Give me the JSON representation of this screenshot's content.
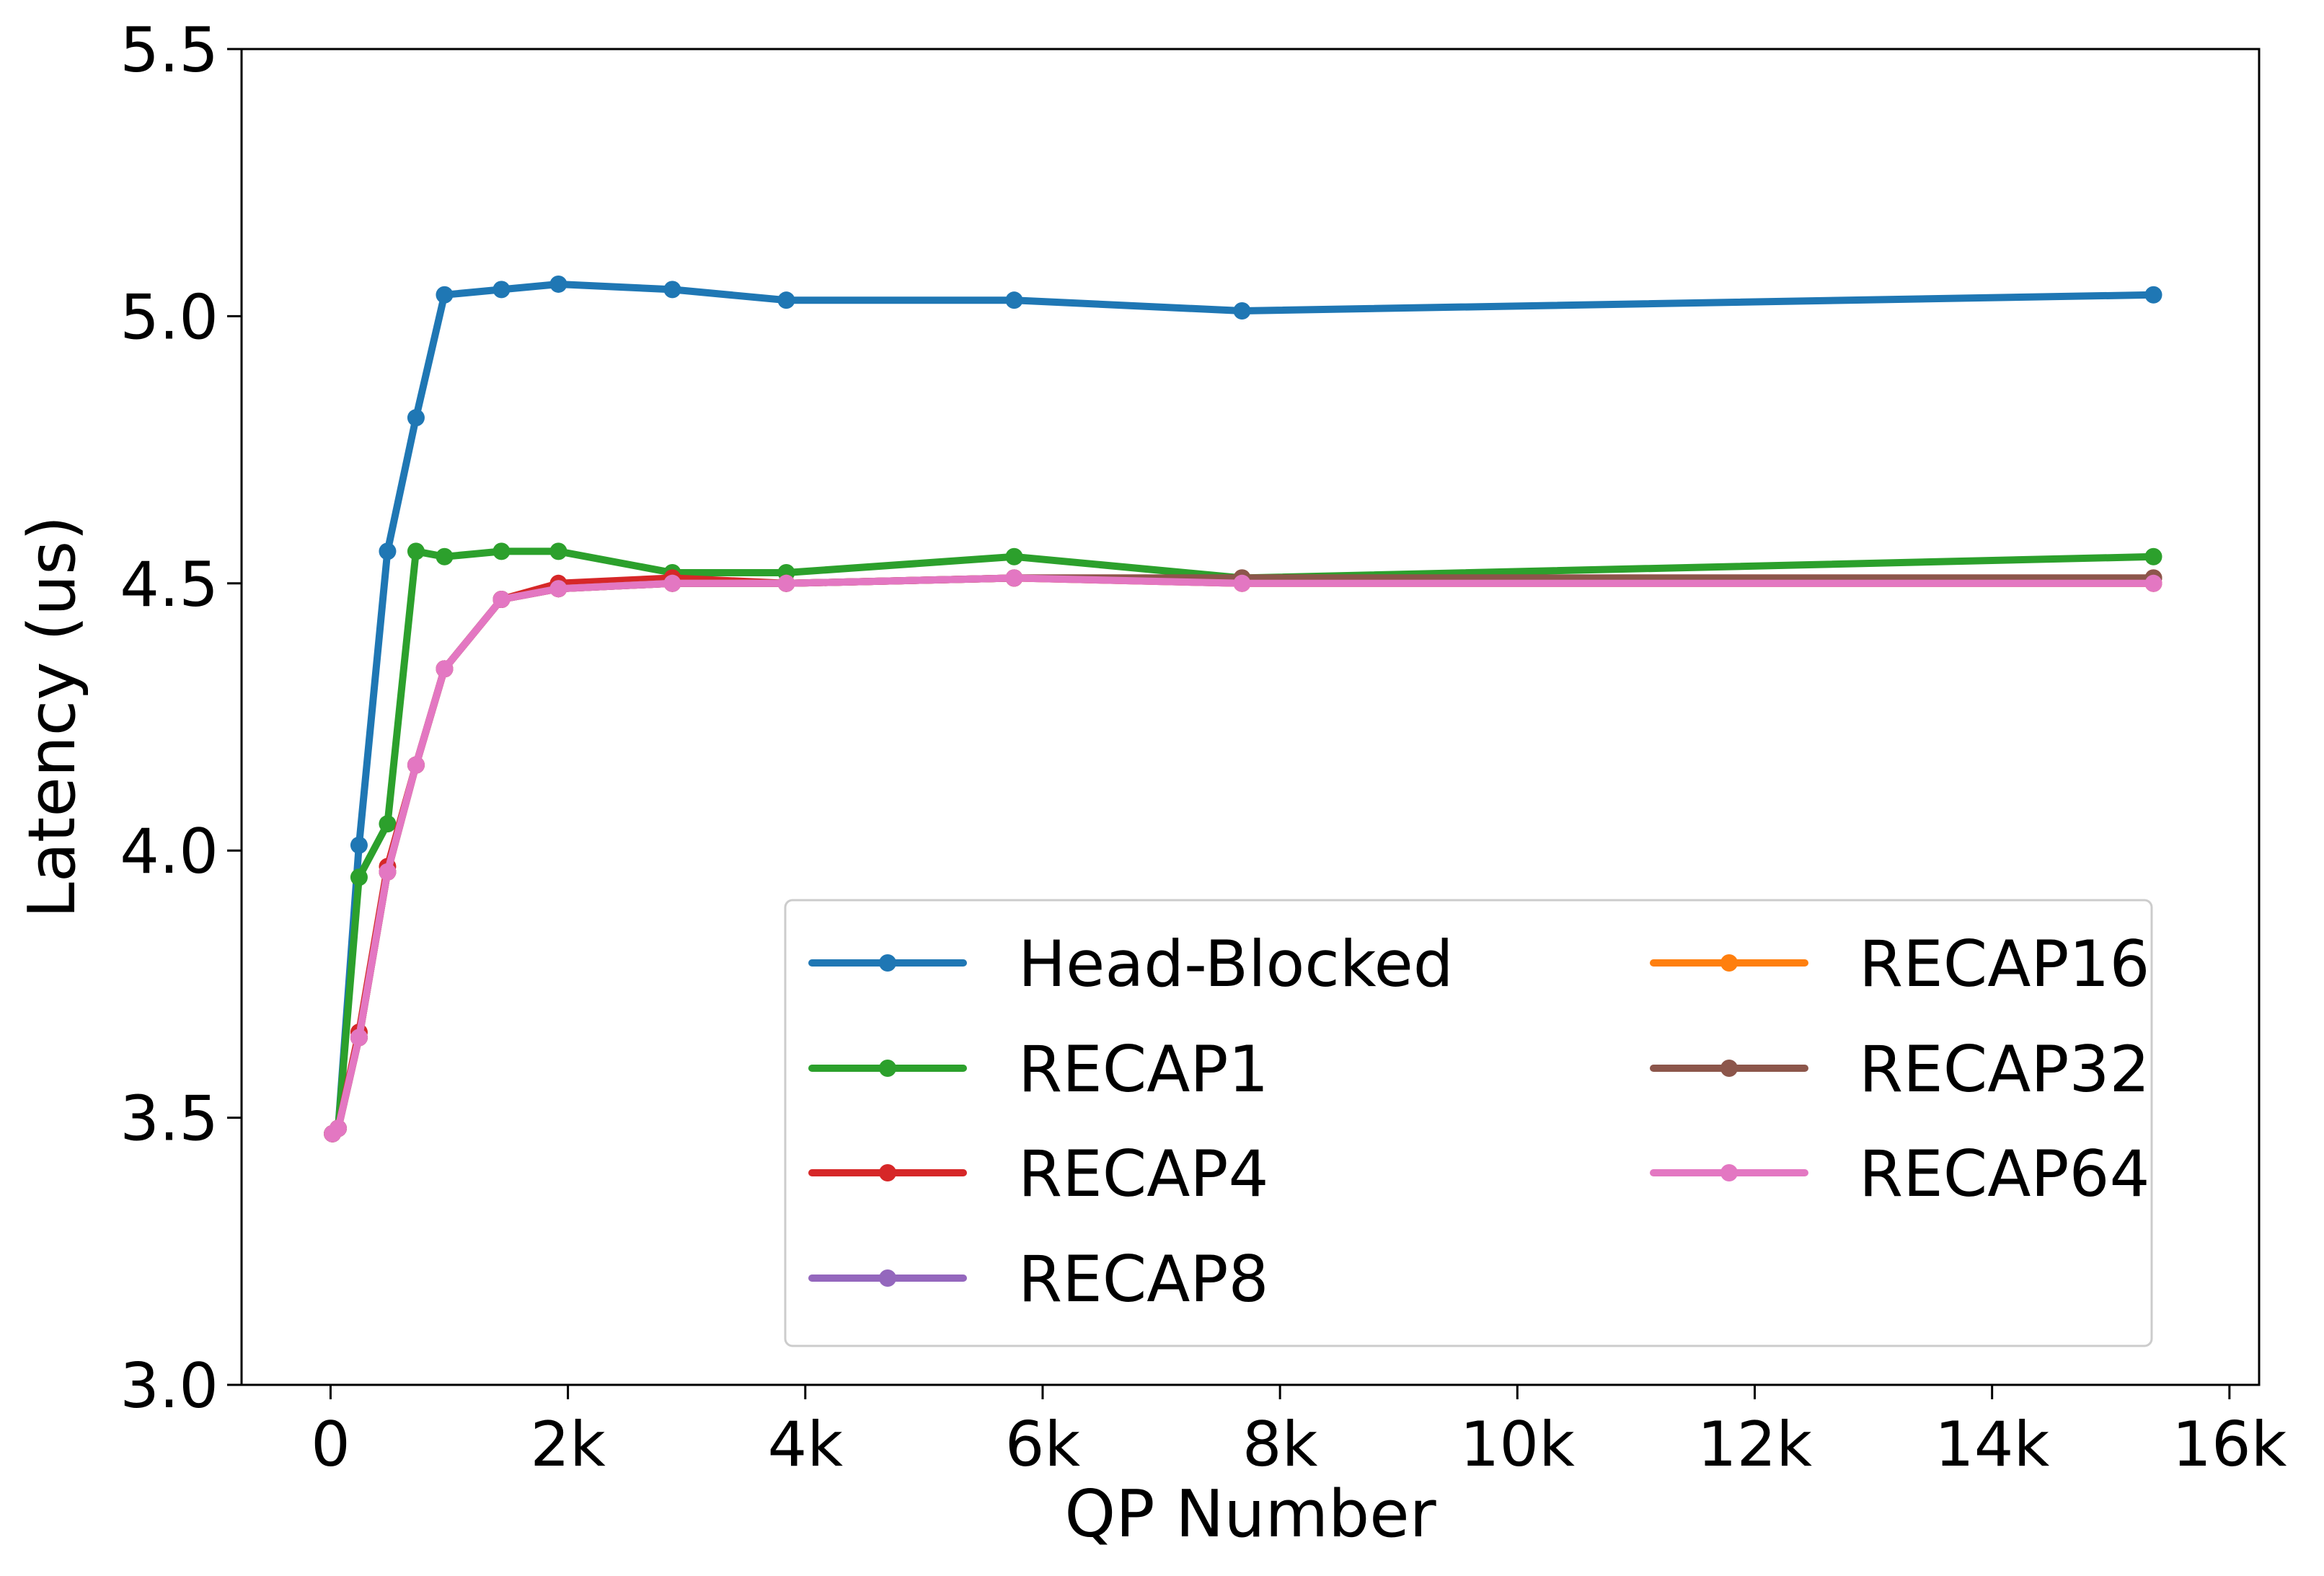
{
  "chart_data": {
    "type": "line",
    "title": "",
    "xlabel": "QP Number",
    "ylabel": "Latency (us)",
    "xlim": [
      -750,
      16250
    ],
    "ylim": [
      3.0,
      5.5
    ],
    "xticks": [
      0,
      2000,
      4000,
      6000,
      8000,
      10000,
      12000,
      14000,
      16000
    ],
    "xtick_labels": [
      "0",
      "2k",
      "4k",
      "6k",
      "8k",
      "10k",
      "12k",
      "14k",
      "16k"
    ],
    "yticks": [
      3.0,
      3.5,
      4.0,
      4.5,
      5.0,
      5.5
    ],
    "ytick_labels": [
      "3.0",
      "3.5",
      "4.0",
      "4.5",
      "5.0",
      "5.5"
    ],
    "grid": false,
    "legend": {
      "placement": "lower-right",
      "columns": 2
    },
    "x": [
      16,
      64,
      240,
      480,
      720,
      960,
      1440,
      1920,
      2880,
      3840,
      5760,
      7680,
      15360
    ],
    "series": [
      {
        "name": "Head-Blocked",
        "color": "#1f77b4",
        "values": [
          3.47,
          3.48,
          4.01,
          4.56,
          4.81,
          5.04,
          5.05,
          5.06,
          5.05,
          5.03,
          5.03,
          5.01,
          5.04
        ]
      },
      {
        "name": "RECAP1",
        "color": "#2ca02c",
        "values": [
          3.47,
          3.48,
          3.95,
          4.05,
          4.56,
          4.55,
          4.56,
          4.56,
          4.52,
          4.52,
          4.55,
          4.51,
          4.55
        ]
      },
      {
        "name": "RECAP4",
        "color": "#d62728",
        "values": [
          3.47,
          3.48,
          3.66,
          3.97,
          4.16,
          4.34,
          4.47,
          4.5,
          4.51,
          4.5,
          4.51,
          4.51,
          4.51
        ]
      },
      {
        "name": "RECAP8",
        "color": "#9467bd",
        "values": [
          3.47,
          3.48,
          3.65,
          3.96,
          4.16,
          4.34,
          4.47,
          4.49,
          4.5,
          4.5,
          4.51,
          4.5,
          4.5
        ]
      },
      {
        "name": "RECAP16",
        "color": "#ff7f0e",
        "values": [
          3.47,
          3.48,
          3.65,
          3.96,
          4.16,
          4.34,
          4.47,
          4.49,
          4.5,
          4.5,
          4.51,
          4.5,
          4.5
        ]
      },
      {
        "name": "RECAP32",
        "color": "#8c564b",
        "values": [
          3.47,
          3.48,
          3.65,
          3.96,
          4.16,
          4.34,
          4.47,
          4.49,
          4.5,
          4.5,
          4.51,
          4.51,
          4.51
        ]
      },
      {
        "name": "RECAP64",
        "color": "#e377c2",
        "values": [
          3.47,
          3.48,
          3.65,
          3.96,
          4.16,
          4.34,
          4.47,
          4.49,
          4.5,
          4.5,
          4.51,
          4.5,
          4.5
        ]
      }
    ]
  }
}
